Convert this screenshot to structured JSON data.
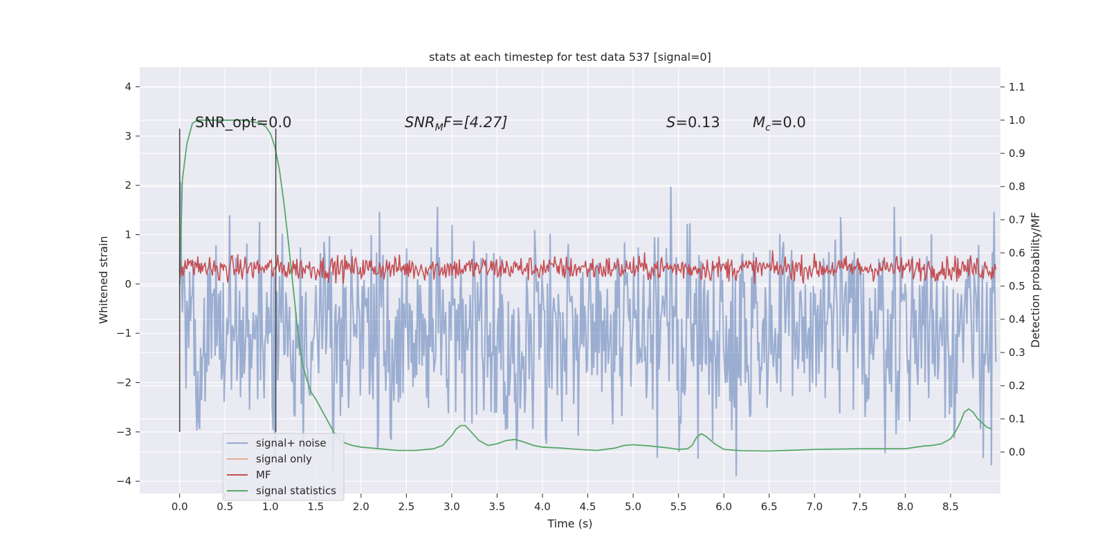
{
  "chart_data": {
    "type": "line",
    "title": "stats at each timestep for test data 537 [signal=0]",
    "xlabel": "Time (s)",
    "ylabel": "Whitened strain",
    "y2label": "Detection probability/MF",
    "xlim": [
      -0.44,
      9.05
    ],
    "ylim": [
      -4.25,
      4.4
    ],
    "y2lim": [
      -0.125,
      1.16
    ],
    "xticks": [
      0.0,
      0.5,
      1.0,
      1.5,
      2.0,
      2.5,
      3.0,
      3.5,
      4.0,
      4.5,
      5.0,
      5.5,
      6.0,
      6.5,
      7.0,
      7.5,
      8.0,
      8.5
    ],
    "xtick_labels": [
      "0.0",
      "0.5",
      "1.0",
      "1.5",
      "2.0",
      "2.5",
      "3.0",
      "3.5",
      "4.0",
      "4.5",
      "5.0",
      "5.5",
      "6.0",
      "6.5",
      "7.0",
      "7.5",
      "8.0",
      "8.5"
    ],
    "yticks": [
      4,
      3,
      2,
      1,
      0,
      -1,
      -2,
      -3,
      -4
    ],
    "ytick_labels": [
      "4",
      "3",
      "2",
      "1",
      "0",
      "−1",
      "−2",
      "−3",
      "−4"
    ],
    "y2ticks": [
      1.1,
      1.0,
      0.9,
      0.8,
      0.7,
      0.6,
      0.5,
      0.4,
      0.3,
      0.2,
      0.1,
      0.0
    ],
    "y2tick_labels": [
      "1.1",
      "1.0",
      "0.9",
      "0.8",
      "0.7",
      "0.6",
      "0.5",
      "0.4",
      "0.3",
      "0.2",
      "0.1",
      "0.0"
    ],
    "legend_position": "lower-left",
    "annotations": {
      "snr_opt": "SNR_opt=0.0",
      "snr_mf_main": "SNR",
      "snr_mf_sub": "M",
      "snr_mf_rest": "F=[4.27]",
      "s_main": "S",
      "s_rest": "=0.13",
      "mc_main": "M",
      "mc_sub": "c",
      "mc_rest": "=0.0"
    },
    "vlines": [
      {
        "x": 0.0,
        "y_from": -3.0,
        "y_to": 3.15
      },
      {
        "x": 1.06,
        "y_from": -3.0,
        "y_to": 3.15
      }
    ],
    "series": [
      {
        "name": "signal+ noise",
        "color": "#4c72b0",
        "axis": "left",
        "t_start": 0.0,
        "t_end": 9.0,
        "center": -0.9,
        "amplitude": 2.9,
        "samples": 900
      },
      {
        "name": "signal only",
        "color": "#dd8452",
        "axis": "left",
        "t_start": 0.0,
        "t_end": 9.0,
        "values": []
      },
      {
        "name": "MF",
        "color": "#c44e52",
        "axis": "left",
        "t_start": 0.0,
        "t_end": 9.0,
        "center": 0.32,
        "amplitude": 0.32,
        "samples": 900
      },
      {
        "name": "signal statistics",
        "color": "#55a868",
        "axis": "right",
        "x": [
          0.0,
          0.03,
          0.08,
          0.14,
          0.2,
          0.4,
          0.7,
          0.9,
          0.95,
          1.0,
          1.05,
          1.1,
          1.15,
          1.2,
          1.25,
          1.3,
          1.35,
          1.4,
          1.45,
          1.5,
          1.6,
          1.7,
          1.8,
          1.9,
          2.0,
          2.2,
          2.4,
          2.6,
          2.8,
          2.9,
          3.0,
          3.05,
          3.1,
          3.15,
          3.2,
          3.3,
          3.4,
          3.5,
          3.6,
          3.7,
          3.8,
          3.9,
          4.0,
          4.2,
          4.4,
          4.6,
          4.8,
          4.9,
          5.0,
          5.2,
          5.4,
          5.5,
          5.6,
          5.65,
          5.7,
          5.75,
          5.8,
          5.9,
          6.0,
          6.2,
          6.5,
          7.0,
          7.5,
          8.0,
          8.2,
          8.3,
          8.4,
          8.5,
          8.55,
          8.6,
          8.65,
          8.7,
          8.75,
          8.8,
          8.9,
          8.95
        ],
        "y": [
          0.5,
          0.82,
          0.93,
          0.99,
          1.0,
          1.0,
          1.0,
          0.99,
          0.98,
          0.96,
          0.92,
          0.85,
          0.75,
          0.63,
          0.5,
          0.37,
          0.27,
          0.22,
          0.18,
          0.16,
          0.11,
          0.06,
          0.03,
          0.02,
          0.015,
          0.01,
          0.005,
          0.005,
          0.01,
          0.02,
          0.05,
          0.07,
          0.08,
          0.08,
          0.065,
          0.035,
          0.02,
          0.025,
          0.035,
          0.038,
          0.03,
          0.02,
          0.015,
          0.012,
          0.008,
          0.005,
          0.012,
          0.02,
          0.022,
          0.018,
          0.012,
          0.008,
          0.01,
          0.02,
          0.045,
          0.055,
          0.048,
          0.025,
          0.008,
          0.004,
          0.003,
          0.008,
          0.01,
          0.01,
          0.018,
          0.02,
          0.025,
          0.04,
          0.06,
          0.085,
          0.12,
          0.13,
          0.12,
          0.1,
          0.075,
          0.07
        ]
      }
    ]
  }
}
